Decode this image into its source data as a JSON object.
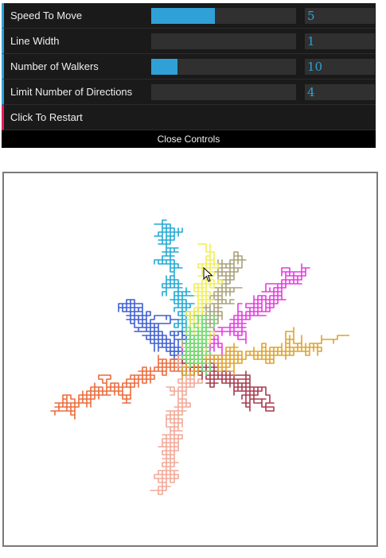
{
  "controls": [
    {
      "label": "Speed To Move",
      "value": "5",
      "fill": 0.44
    },
    {
      "label": "Line Width",
      "value": "1",
      "fill": 0.0
    },
    {
      "label": "Number of Walkers",
      "value": "10",
      "fill": 0.18
    },
    {
      "label": "Limit Number of Directions",
      "value": "4",
      "fill": 0.0
    }
  ],
  "restart_label": "Click To Restart",
  "close_label": "Close Controls",
  "colors": {
    "accent": "#2fa1d6",
    "function_accent": "#e61d5f",
    "panel_bg": "#1a1a1a",
    "field_bg": "#303030",
    "canvas_border": "#7a7a7a"
  },
  "walkers": [
    {
      "color": "#22a9d4",
      "seed": 3
    },
    {
      "color": "#3f5fd4",
      "seed": 11
    },
    {
      "color": "#e63be0",
      "seed": 17
    },
    {
      "color": "#a8a27a",
      "seed": 23
    },
    {
      "color": "#ee6a3a",
      "seed": 29
    },
    {
      "color": "#f2a898",
      "seed": 37
    },
    {
      "color": "#a83a4c",
      "seed": 41
    },
    {
      "color": "#e0a22a",
      "seed": 47
    },
    {
      "color": "#f0ee58",
      "seed": 53
    },
    {
      "color": "#6ae07a",
      "seed": 59
    }
  ]
}
